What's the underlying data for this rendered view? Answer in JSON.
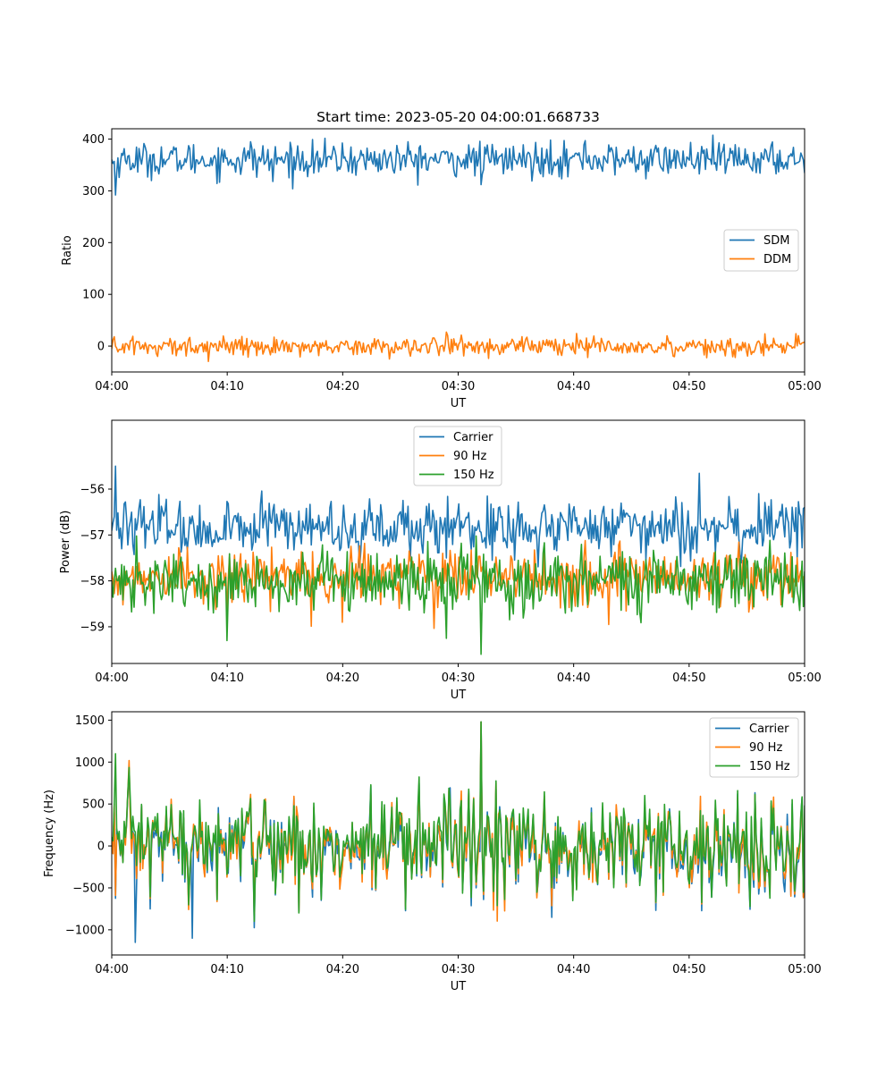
{
  "figure": {
    "title": "Start time: 2023-05-20 04:00:01.668733"
  },
  "chart_data": [
    {
      "type": "line",
      "title": "Start time: 2023-05-20 04:00:01.668733",
      "xlabel": "UT",
      "ylabel": "Ratio",
      "xlim": [
        "04:00",
        "05:00"
      ],
      "xticks": [
        "04:00",
        "04:10",
        "04:20",
        "04:30",
        "04:40",
        "04:50",
        "05:00"
      ],
      "ylim": [
        -50,
        420
      ],
      "yticks": [
        0,
        100,
        200,
        300,
        400
      ],
      "ytick_labels": [
        "0",
        "100",
        "200",
        "300",
        "400"
      ],
      "legend": "center-right",
      "grid": false,
      "series": [
        {
          "name": "SDM",
          "color": "#1f77b4",
          "mean": 360,
          "noise": 16,
          "values": [
            {
              "t": "04:00",
              "y": 360
            },
            {
              "t": "04:00:20",
              "y": 292
            },
            {
              "t": "04:12",
              "y": 395
            },
            {
              "t": "04:14",
              "y": 318
            },
            {
              "t": "04:32",
              "y": 312
            },
            {
              "t": "04:38",
              "y": 398
            },
            {
              "t": "04:41",
              "y": 397
            },
            {
              "t": "04:59",
              "y": 384
            },
            {
              "t": "05:00",
              "y": 335
            }
          ]
        },
        {
          "name": "DDM",
          "color": "#ff7f0e",
          "mean": 0,
          "noise": 9,
          "values": [
            {
              "t": "04:00",
              "y": -5
            },
            {
              "t": "04:04",
              "y": -20
            },
            {
              "t": "04:24",
              "y": -25
            },
            {
              "t": "04:29",
              "y": 27
            },
            {
              "t": "04:54",
              "y": -22
            },
            {
              "t": "05:00",
              "y": 8
            }
          ]
        }
      ]
    },
    {
      "type": "line",
      "title": "",
      "xlabel": "UT",
      "ylabel": "Power (dB)",
      "xlim": [
        "04:00",
        "05:00"
      ],
      "xticks": [
        "04:00",
        "04:10",
        "04:20",
        "04:30",
        "04:40",
        "04:50",
        "05:00"
      ],
      "ylim": [
        -59.8,
        -54.5
      ],
      "yticks": [
        -56,
        -57,
        -58,
        -59
      ],
      "ytick_labels": [
        "−56",
        "−57",
        "−58",
        "−59"
      ],
      "legend": "top-center",
      "grid": false,
      "series": [
        {
          "name": "Carrier",
          "color": "#1f77b4",
          "mean": -56.85,
          "noise": 0.3,
          "values": [
            {
              "t": "04:00",
              "y": -56.9
            },
            {
              "t": "04:00:20",
              "y": -55.5
            },
            {
              "t": "04:29",
              "y": -57.5
            },
            {
              "t": "04:56",
              "y": -56.1
            },
            {
              "t": "05:00",
              "y": -56.4
            }
          ]
        },
        {
          "name": "90 Hz",
          "color": "#ff7f0e",
          "mean": -57.9,
          "noise": 0.3,
          "values": [
            {
              "t": "04:00",
              "y": -57.8
            },
            {
              "t": "04:10",
              "y": -58.7
            },
            {
              "t": "04:20",
              "y": -58.9
            },
            {
              "t": "04:43",
              "y": -58.95
            },
            {
              "t": "05:00",
              "y": -58.2
            }
          ]
        },
        {
          "name": "150 Hz",
          "color": "#2ca02c",
          "mean": -58.0,
          "noise": 0.35,
          "values": [
            {
              "t": "04:00",
              "y": -58.0
            },
            {
              "t": "04:10",
              "y": -59.3
            },
            {
              "t": "04:29",
              "y": -59.25
            },
            {
              "t": "04:32",
              "y": -59.6
            },
            {
              "t": "05:00",
              "y": -57.8
            }
          ]
        }
      ]
    },
    {
      "type": "line",
      "title": "",
      "xlabel": "UT",
      "ylabel": "Frequency (Hz)",
      "xlim": [
        "04:00",
        "05:00"
      ],
      "xticks": [
        "04:00",
        "04:10",
        "04:20",
        "04:30",
        "04:40",
        "04:50",
        "05:00"
      ],
      "ylim": [
        -1300,
        1600
      ],
      "yticks": [
        1500,
        1000,
        500,
        0,
        -500,
        -1000
      ],
      "ytick_labels": [
        "1500",
        "1000",
        "500",
        "0",
        "−500",
        "−1000"
      ],
      "legend": "top-right",
      "grid": false,
      "series": [
        {
          "name": "Carrier",
          "color": "#1f77b4",
          "mean": 0,
          "noise": 330,
          "values": [
            {
              "t": "04:00",
              "y": 100
            },
            {
              "t": "04:02",
              "y": -1150
            },
            {
              "t": "04:07",
              "y": -1100
            },
            {
              "t": "04:32",
              "y": 1480
            },
            {
              "t": "05:00",
              "y": -550
            }
          ]
        },
        {
          "name": "90 Hz",
          "color": "#ff7f0e",
          "mean": 0,
          "noise": 330,
          "values": [
            {
              "t": "04:00",
              "y": 100
            },
            {
              "t": "04:32",
              "y": 1480
            },
            {
              "t": "05:00",
              "y": -500
            }
          ]
        },
        {
          "name": "150 Hz",
          "color": "#2ca02c",
          "mean": 0,
          "noise": 330,
          "values": [
            {
              "t": "04:00",
              "y": 100
            },
            {
              "t": "04:00:20",
              "y": 1100
            },
            {
              "t": "04:32",
              "y": 1480
            },
            {
              "t": "05:00",
              "y": 480
            }
          ]
        }
      ]
    }
  ]
}
